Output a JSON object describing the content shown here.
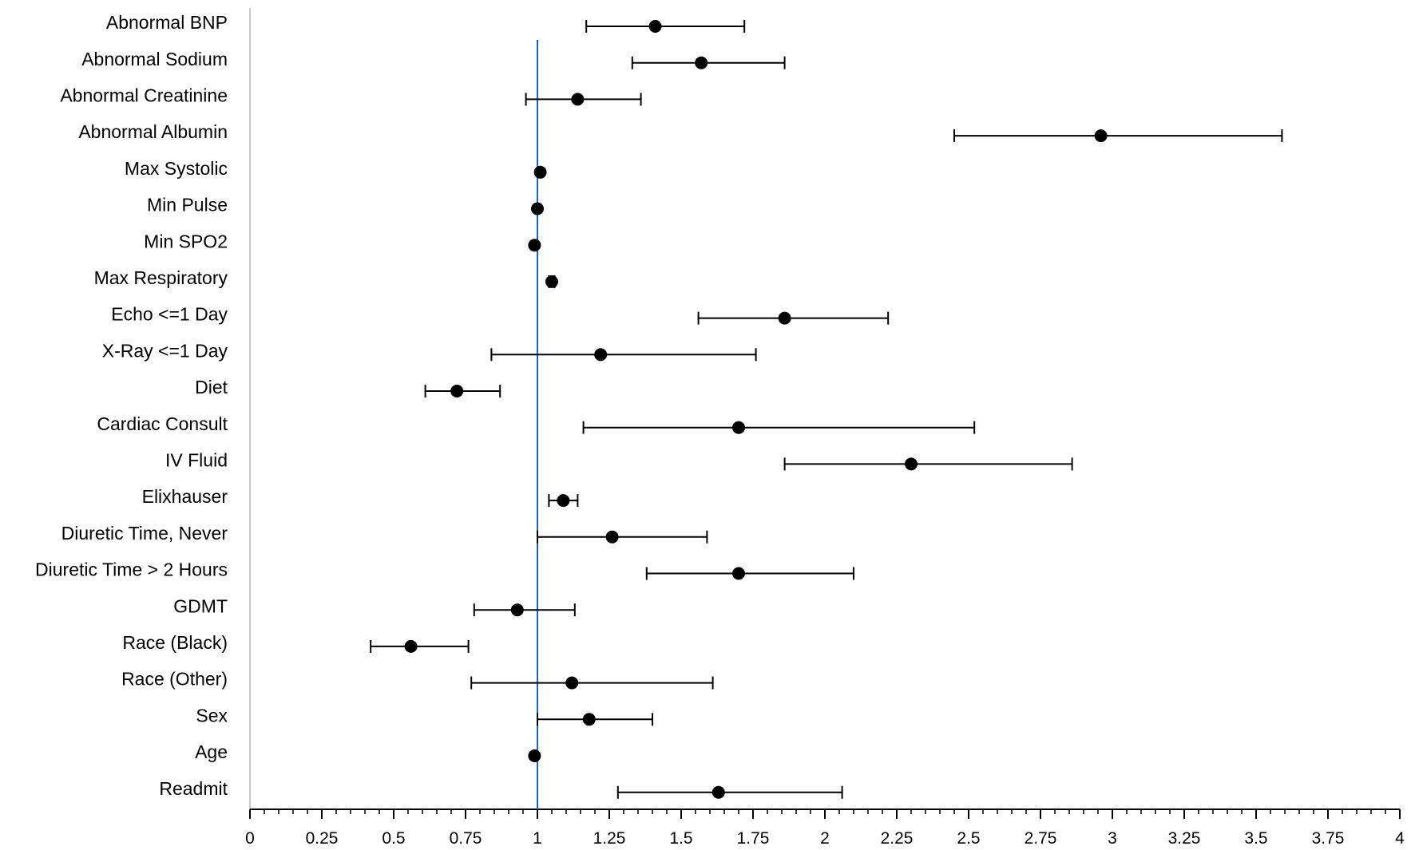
{
  "chart_data": {
    "type": "scatter",
    "subtype": "forest-plot",
    "title": "",
    "xlabel": "",
    "ylabel": "",
    "xlim": [
      0,
      4
    ],
    "x_ticks": [
      "0",
      "0.25",
      "0.5",
      "0.75",
      "1",
      "1.25",
      "1.5",
      "1.75",
      "2",
      "2.25",
      "2.5",
      "2.75",
      "3",
      "3.25",
      "3.5",
      "3.75",
      "4"
    ],
    "reference_line": {
      "x": 1,
      "color": "#1f5fbf"
    },
    "marker_color": "#000000",
    "grid": false,
    "legend": "none",
    "rows": [
      {
        "label": "Abnormal BNP",
        "estimate": 1.41,
        "lower": 1.17,
        "upper": 1.72
      },
      {
        "label": "Abnormal Sodium",
        "estimate": 1.57,
        "lower": 1.33,
        "upper": 1.86
      },
      {
        "label": "Abnormal Creatinine",
        "estimate": 1.14,
        "lower": 0.96,
        "upper": 1.36
      },
      {
        "label": "Abnormal Albumin",
        "estimate": 2.96,
        "lower": 2.45,
        "upper": 3.59
      },
      {
        "label": "Max Systolic",
        "estimate": 1.01,
        "lower": 1.0,
        "upper": 1.01
      },
      {
        "label": "Min Pulse",
        "estimate": 1.0,
        "lower": 0.99,
        "upper": 1.0
      },
      {
        "label": "Min SPO2",
        "estimate": 0.99,
        "lower": 0.99,
        "upper": 1.0
      },
      {
        "label": "Max Respiratory",
        "estimate": 1.05,
        "lower": 1.04,
        "upper": 1.06
      },
      {
        "label": "Echo <=1 Day",
        "estimate": 1.86,
        "lower": 1.56,
        "upper": 2.22
      },
      {
        "label": "X-Ray <=1 Day",
        "estimate": 1.22,
        "lower": 0.84,
        "upper": 1.76
      },
      {
        "label": "Diet",
        "estimate": 0.72,
        "lower": 0.61,
        "upper": 0.87
      },
      {
        "label": "Cardiac Consult",
        "estimate": 1.7,
        "lower": 1.16,
        "upper": 2.52
      },
      {
        "label": "IV Fluid",
        "estimate": 2.3,
        "lower": 1.86,
        "upper": 2.86
      },
      {
        "label": "Elixhauser",
        "estimate": 1.09,
        "lower": 1.04,
        "upper": 1.14
      },
      {
        "label": "Diuretic Time, Never",
        "estimate": 1.26,
        "lower": 1.0,
        "upper": 1.59
      },
      {
        "label": "Diuretic Time > 2 Hours",
        "estimate": 1.7,
        "lower": 1.38,
        "upper": 2.1
      },
      {
        "label": "GDMT",
        "estimate": 0.93,
        "lower": 0.78,
        "upper": 1.13
      },
      {
        "label": "Race (Black)",
        "estimate": 0.56,
        "lower": 0.42,
        "upper": 0.76
      },
      {
        "label": "Race (Other)",
        "estimate": 1.12,
        "lower": 0.77,
        "upper": 1.61
      },
      {
        "label": "Sex",
        "estimate": 1.18,
        "lower": 1.0,
        "upper": 1.4
      },
      {
        "label": "Age",
        "estimate": 0.99,
        "lower": 0.98,
        "upper": 0.99
      },
      {
        "label": "Readmit",
        "estimate": 1.63,
        "lower": 1.28,
        "upper": 2.06
      }
    ]
  }
}
